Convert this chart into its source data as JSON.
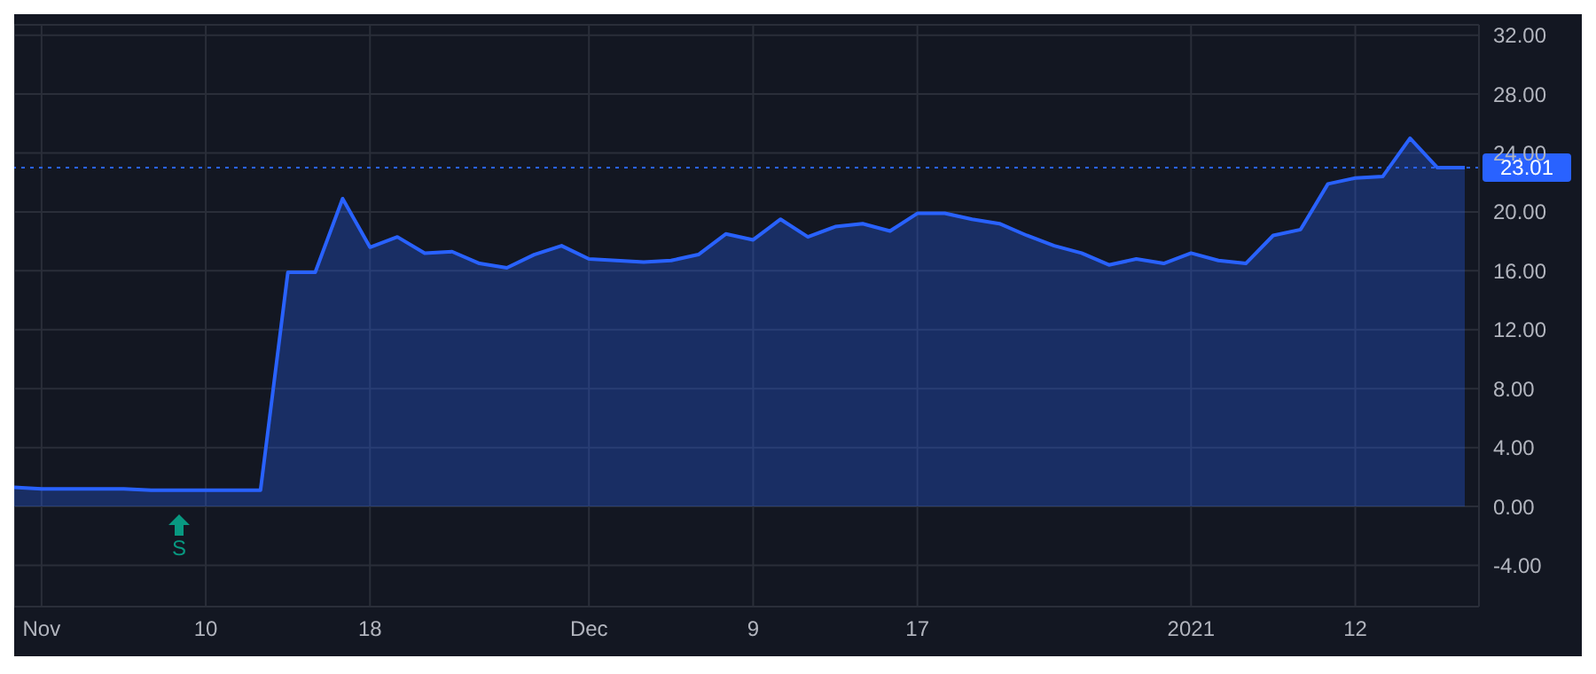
{
  "chart_data": {
    "type": "area",
    "categories": [
      null,
      "Nov",
      null,
      null,
      null,
      null,
      null,
      "10",
      null,
      null,
      null,
      null,
      null,
      "18",
      null,
      null,
      null,
      null,
      null,
      null,
      null,
      "Dec",
      null,
      null,
      null,
      null,
      null,
      "9",
      null,
      null,
      null,
      null,
      null,
      "17",
      null,
      null,
      null,
      null,
      null,
      null,
      null,
      null,
      null,
      "2021",
      null,
      null,
      null,
      null,
      null,
      "12",
      null,
      null,
      null,
      null
    ],
    "series": [
      {
        "color": "#2962ff",
        "values": [
          1.3,
          1.2,
          1.2,
          1.2,
          1.2,
          1.1,
          1.1,
          1.1,
          1.1,
          1.1,
          15.9,
          15.9,
          20.9,
          17.6,
          18.3,
          17.2,
          17.3,
          16.5,
          16.2,
          17.1,
          17.7,
          16.8,
          16.7,
          16.6,
          16.7,
          17.1,
          18.5,
          18.1,
          19.5,
          18.3,
          19.0,
          19.2,
          18.7,
          19.9,
          19.9,
          19.5,
          19.2,
          18.4,
          17.7,
          17.2,
          16.4,
          16.8,
          16.5,
          17.2,
          16.7,
          16.5,
          18.4,
          18.8,
          21.9,
          22.3,
          22.4,
          25.0,
          23.0,
          23.01
        ]
      }
    ],
    "ylim": [
      -6.8,
      32.7
    ],
    "yticks": [
      {
        "value": -4,
        "label": "-4.00"
      },
      {
        "value": 0,
        "label": "0.00"
      },
      {
        "value": 4,
        "label": "4.00"
      },
      {
        "value": 8,
        "label": "8.00"
      },
      {
        "value": 12,
        "label": "12.00"
      },
      {
        "value": 16,
        "label": "16.00"
      },
      {
        "value": 20,
        "label": "20.00"
      },
      {
        "value": 24,
        "label": "24.00"
      },
      {
        "value": 28,
        "label": "28.00"
      },
      {
        "value": 32,
        "label": "32.00"
      }
    ],
    "ref_lines": [
      {
        "axis": "y",
        "value": 23.01,
        "label": "23.01",
        "color": "#2962ff",
        "line_style": "dotted"
      }
    ],
    "annotations": [
      "S"
    ],
    "grid": true,
    "legend": false,
    "marker": "none",
    "line_style": "solid"
  }
}
